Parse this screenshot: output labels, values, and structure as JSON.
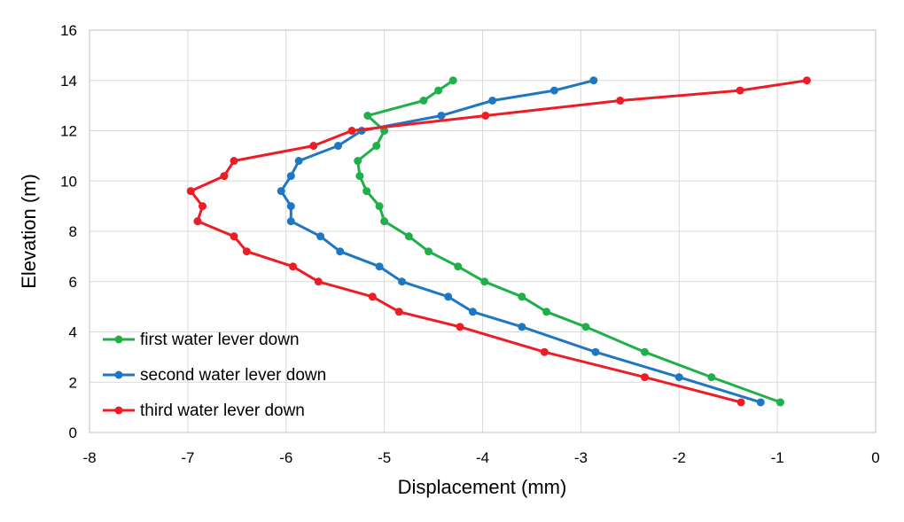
{
  "chart_data": {
    "type": "line",
    "xlabel": "Displacement (mm)",
    "ylabel": "Elevation (m)",
    "xlim": [
      -8,
      0
    ],
    "ylim": [
      0,
      16
    ],
    "xticks": [
      -8,
      -7,
      -6,
      -5,
      -4,
      -3,
      -2,
      -1,
      0
    ],
    "yticks": [
      0,
      2,
      4,
      6,
      8,
      10,
      12,
      14,
      16
    ],
    "xtick_labels": [
      "-8",
      "-7",
      "-6",
      "-5",
      "-4",
      "-3",
      "-2",
      "-1",
      "0"
    ],
    "ytick_labels": [
      "0",
      "2",
      "4",
      "6",
      "8",
      "10",
      "12",
      "14",
      "16"
    ],
    "grid": true,
    "legend_position": "bottom-left",
    "series": [
      {
        "name": "first water lever down",
        "color": "#1fb04a",
        "points": [
          [
            -0.97,
            1.2
          ],
          [
            -1.67,
            2.2
          ],
          [
            -2.35,
            3.2
          ],
          [
            -2.95,
            4.2
          ],
          [
            -3.35,
            4.8
          ],
          [
            -3.6,
            5.4
          ],
          [
            -3.98,
            6.0
          ],
          [
            -4.25,
            6.6
          ],
          [
            -4.55,
            7.2
          ],
          [
            -4.75,
            7.8
          ],
          [
            -5.0,
            8.4
          ],
          [
            -5.05,
            9.0
          ],
          [
            -5.18,
            9.6
          ],
          [
            -5.25,
            10.2
          ],
          [
            -5.27,
            10.8
          ],
          [
            -5.08,
            11.4
          ],
          [
            -5.0,
            12.0
          ],
          [
            -5.17,
            12.6
          ],
          [
            -4.6,
            13.2
          ],
          [
            -4.45,
            13.6
          ],
          [
            -4.3,
            14.0
          ]
        ]
      },
      {
        "name": "second water lever down",
        "color": "#1f77c4",
        "points": [
          [
            -1.17,
            1.2
          ],
          [
            -2.0,
            2.2
          ],
          [
            -2.85,
            3.2
          ],
          [
            -3.6,
            4.2
          ],
          [
            -4.1,
            4.8
          ],
          [
            -4.35,
            5.4
          ],
          [
            -4.82,
            6.0
          ],
          [
            -5.05,
            6.6
          ],
          [
            -5.45,
            7.2
          ],
          [
            -5.65,
            7.8
          ],
          [
            -5.95,
            8.4
          ],
          [
            -5.95,
            9.0
          ],
          [
            -6.05,
            9.6
          ],
          [
            -5.95,
            10.2
          ],
          [
            -5.87,
            10.8
          ],
          [
            -5.47,
            11.4
          ],
          [
            -5.23,
            12.0
          ],
          [
            -4.42,
            12.6
          ],
          [
            -3.9,
            13.2
          ],
          [
            -3.27,
            13.6
          ],
          [
            -2.87,
            14.0
          ]
        ]
      },
      {
        "name": "third water lever down",
        "color": "#ee1c24",
        "points": [
          [
            -1.37,
            1.2
          ],
          [
            -2.35,
            2.2
          ],
          [
            -3.37,
            3.2
          ],
          [
            -4.23,
            4.2
          ],
          [
            -4.85,
            4.8
          ],
          [
            -5.12,
            5.4
          ],
          [
            -5.67,
            6.0
          ],
          [
            -5.93,
            6.6
          ],
          [
            -6.4,
            7.2
          ],
          [
            -6.53,
            7.8
          ],
          [
            -6.9,
            8.4
          ],
          [
            -6.85,
            9.0
          ],
          [
            -6.97,
            9.6
          ],
          [
            -6.63,
            10.2
          ],
          [
            -6.53,
            10.8
          ],
          [
            -5.72,
            11.4
          ],
          [
            -5.33,
            12.0
          ],
          [
            -3.97,
            12.6
          ],
          [
            -2.6,
            13.2
          ],
          [
            -1.38,
            13.6
          ],
          [
            -0.7,
            14.0
          ]
        ]
      }
    ]
  }
}
